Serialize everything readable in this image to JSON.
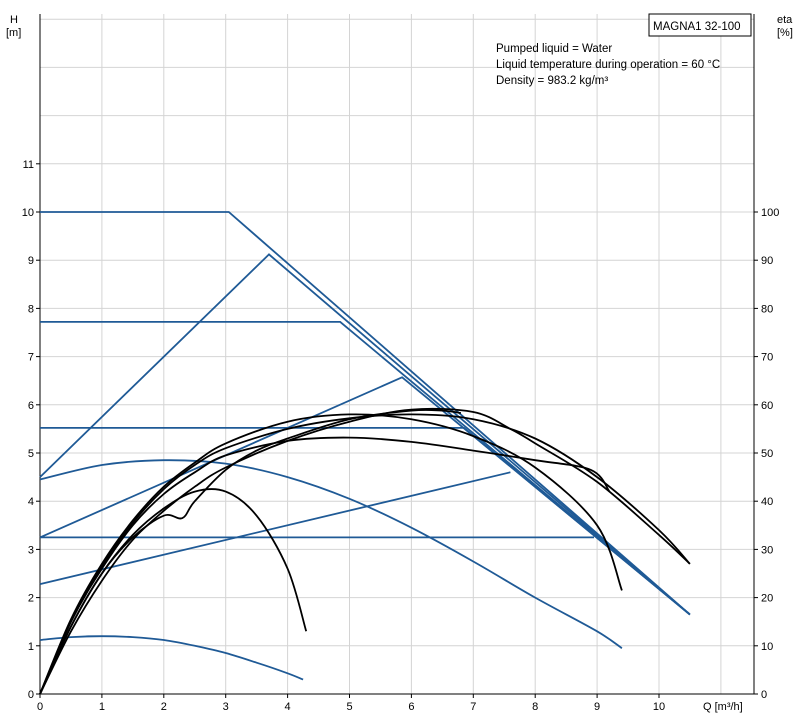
{
  "chart_data": {
    "type": "line",
    "title": "MAGNA1 32-100",
    "notes": [
      "Pumped liquid = Water",
      "Liquid temperature during operation = 60 °C",
      "Density = 983.2 kg/m³"
    ],
    "y_left_label": [
      "H",
      "[m]"
    ],
    "y_right_label": [
      "eta",
      "[%]"
    ],
    "x_label": "Q [m³/h]",
    "x_ticks": [
      "0",
      "1",
      "2",
      "3",
      "4",
      "5",
      "6",
      "7",
      "8",
      "9",
      "10"
    ],
    "y_left_ticks": [
      "0",
      "1",
      "2",
      "3",
      "4",
      "5",
      "6",
      "7",
      "8",
      "9",
      "10",
      "11"
    ],
    "y_right_ticks": [
      "0",
      "10",
      "20",
      "30",
      "40",
      "50",
      "60",
      "70",
      "80",
      "90",
      "100"
    ],
    "xlim": [
      0,
      11.3
    ],
    "ylim": [
      0,
      14.2
    ],
    "y_right_lim": [
      0,
      142
    ],
    "grid": true,
    "colors": {
      "head": "#1f5a96",
      "efficiency": "#000000",
      "grid": "#d4d4d4",
      "axis": "#000000"
    },
    "head_series": [
      {
        "kind": "const-pressure",
        "points": [
          [
            0,
            10.0
          ],
          [
            3.05,
            10.0
          ],
          [
            10.5,
            1.65
          ]
        ]
      },
      {
        "kind": "const-pressure",
        "points": [
          [
            0,
            7.72
          ],
          [
            4.85,
            7.72
          ],
          [
            10.5,
            1.65
          ]
        ]
      },
      {
        "kind": "const-pressure",
        "points": [
          [
            0,
            5.52
          ],
          [
            6.85,
            5.52
          ],
          [
            10.5,
            1.65
          ]
        ]
      },
      {
        "kind": "const-pressure",
        "points": [
          [
            0,
            3.25
          ],
          [
            8.95,
            3.25
          ]
        ]
      },
      {
        "kind": "prop-pressure",
        "points": [
          [
            0,
            4.5
          ],
          [
            3.7,
            9.12
          ],
          [
            10.5,
            1.65
          ]
        ]
      },
      {
        "kind": "prop-pressure",
        "points": [
          [
            0,
            3.25
          ],
          [
            5.85,
            6.57
          ],
          [
            10.5,
            1.65
          ]
        ]
      },
      {
        "kind": "prop-pressure",
        "points": [
          [
            0,
            2.28
          ],
          [
            7.6,
            4.6
          ]
        ]
      },
      {
        "kind": "curve",
        "points": [
          [
            0,
            4.45
          ],
          [
            1.0,
            4.75
          ],
          [
            2.0,
            4.85
          ],
          [
            3.0,
            4.78
          ],
          [
            4.0,
            4.5
          ],
          [
            5.0,
            4.05
          ],
          [
            6.0,
            3.45
          ],
          [
            7.0,
            2.75
          ],
          [
            8.0,
            2.0
          ],
          [
            9.0,
            1.3
          ],
          [
            9.4,
            0.95
          ]
        ]
      },
      {
        "kind": "curve",
        "points": [
          [
            0,
            1.12
          ],
          [
            0.5,
            1.18
          ],
          [
            1.0,
            1.2
          ],
          [
            1.5,
            1.18
          ],
          [
            2.0,
            1.12
          ],
          [
            2.5,
            1.0
          ],
          [
            3.0,
            0.85
          ],
          [
            3.5,
            0.65
          ],
          [
            4.0,
            0.43
          ],
          [
            4.25,
            0.3
          ]
        ]
      }
    ],
    "efficiency_series": [
      {
        "points": [
          [
            0,
            0
          ],
          [
            0.5,
            14
          ],
          [
            1.0,
            25
          ],
          [
            1.5,
            33
          ],
          [
            2.0,
            38.5
          ],
          [
            2.5,
            42
          ],
          [
            3.0,
            42
          ],
          [
            3.5,
            37
          ],
          [
            4.0,
            26
          ],
          [
            4.3,
            13
          ]
        ]
      },
      {
        "points": [
          [
            0,
            0
          ],
          [
            0.5,
            15
          ],
          [
            1.0,
            26
          ],
          [
            1.5,
            35
          ],
          [
            2.0,
            41.5
          ],
          [
            2.5,
            46
          ],
          [
            3.0,
            49.5
          ],
          [
            4.0,
            52.5
          ],
          [
            5.0,
            53.2
          ],
          [
            6.0,
            52.3
          ],
          [
            7.0,
            50.5
          ],
          [
            8.0,
            48.5
          ],
          [
            8.9,
            46.5
          ],
          [
            9.2,
            42
          ]
        ]
      },
      {
        "points": [
          [
            0,
            0
          ],
          [
            0.5,
            15.5
          ],
          [
            1.0,
            27
          ],
          [
            1.5,
            36
          ],
          [
            2.0,
            43
          ],
          [
            2.5,
            48
          ],
          [
            3.0,
            52
          ],
          [
            4.0,
            56.5
          ],
          [
            5.0,
            58
          ],
          [
            6.0,
            57
          ],
          [
            7.0,
            53.5
          ],
          [
            8.0,
            47
          ],
          [
            9.0,
            35
          ],
          [
            9.4,
            21.5
          ]
        ]
      },
      {
        "points": [
          [
            0,
            0
          ],
          [
            0.5,
            15
          ],
          [
            1.0,
            26.5
          ],
          [
            1.5,
            35.5
          ],
          [
            2.0,
            42.5
          ],
          [
            2.5,
            47.5
          ],
          [
            3.0,
            51
          ],
          [
            4.0,
            55
          ],
          [
            5.0,
            57.2
          ],
          [
            6.0,
            58
          ],
          [
            7.0,
            57
          ],
          [
            8.0,
            53
          ],
          [
            9.0,
            45
          ],
          [
            10.0,
            34
          ],
          [
            10.5,
            27
          ]
        ]
      },
      {
        "points": [
          [
            0,
            0
          ],
          [
            0.5,
            14
          ],
          [
            1.0,
            25
          ],
          [
            1.5,
            32.5
          ],
          [
            2.0,
            37
          ],
          [
            2.3,
            36.5
          ],
          [
            2.5,
            40
          ],
          [
            3.0,
            46.5
          ],
          [
            3.5,
            50.5
          ],
          [
            4.0,
            53
          ],
          [
            5.0,
            57
          ],
          [
            6.0,
            58.8
          ],
          [
            6.5,
            58.8
          ],
          [
            6.8,
            58.3
          ]
        ]
      },
      {
        "points": [
          [
            0,
            0
          ],
          [
            0.5,
            13
          ],
          [
            1.0,
            23.5
          ],
          [
            1.5,
            32
          ],
          [
            2.0,
            38
          ],
          [
            2.5,
            43
          ],
          [
            3.0,
            47
          ],
          [
            4.0,
            52.5
          ],
          [
            5.0,
            56.5
          ],
          [
            6.0,
            59
          ],
          [
            7.0,
            58.5
          ],
          [
            7.6,
            55
          ],
          [
            8.0,
            52
          ],
          [
            9.0,
            44
          ],
          [
            10.0,
            33
          ],
          [
            10.5,
            27
          ]
        ]
      }
    ]
  }
}
